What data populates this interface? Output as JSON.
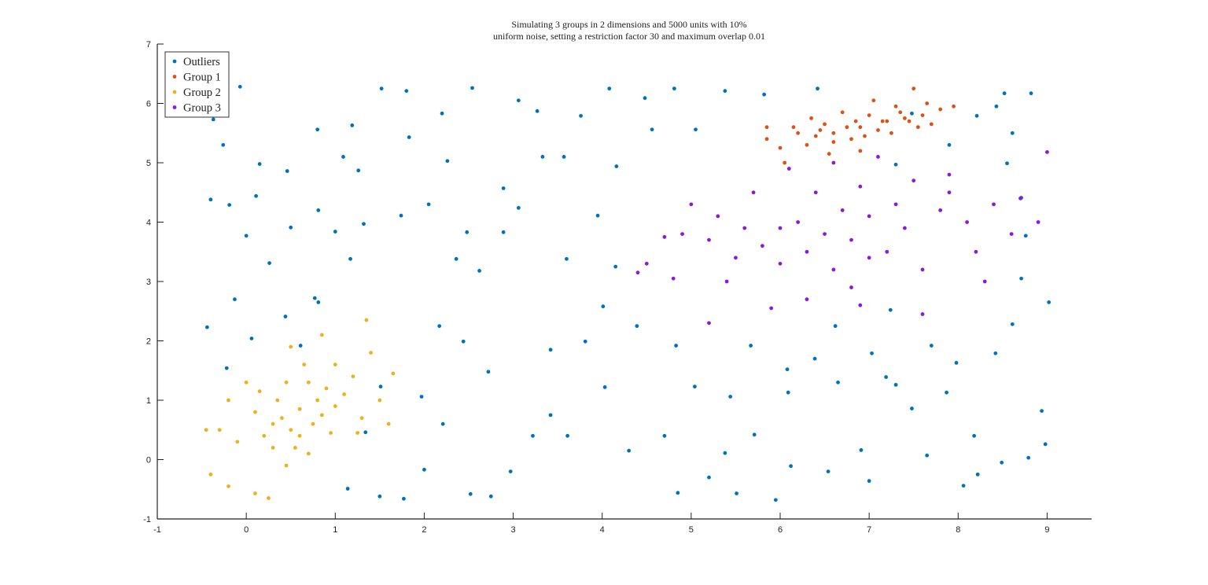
{
  "chart_data": {
    "type": "scatter",
    "title": "Simulating 3 groups in 2 dimensions and 5000 units with 10% uniform noise, setting a restriction factor 30 and maximum overlap 0.01",
    "title_lines": [
      "Simulating 3 groups in 2 dimensions and 5000 units with 10%",
      "uniform noise, setting a restriction factor 30 and maximum overlap 0.01"
    ],
    "xlabel": "",
    "ylabel": "",
    "xlim": [
      -1,
      9.5
    ],
    "ylim": [
      -1,
      7
    ],
    "x_ticks": [
      "-1",
      "0",
      "1",
      "2",
      "3",
      "4",
      "5",
      "6",
      "7",
      "8",
      "9"
    ],
    "y_ticks": [
      "-1",
      "0",
      "1",
      "2",
      "3",
      "4",
      "5",
      "6",
      "7"
    ],
    "grid": false,
    "legend_position": "top-left",
    "series": [
      {
        "name": "Outliers",
        "color": "#0072BD",
        "points": [
          [
            -0.07,
            6.28
          ],
          [
            -0.37,
            5.73
          ],
          [
            -0.26,
            5.3
          ],
          [
            0.15,
            4.98
          ],
          [
            -0.4,
            4.38
          ],
          [
            -0.19,
            4.29
          ],
          [
            0,
            3.77
          ],
          [
            0.26,
            3.31
          ],
          [
            -0.13,
            2.7
          ],
          [
            -0.44,
            2.23
          ],
          [
            0.06,
            2.04
          ],
          [
            -0.22,
            1.54
          ],
          [
            0.44,
            2.41
          ],
          [
            0.81,
            2.65
          ],
          [
            1,
            3.84
          ],
          [
            0.81,
            4.2
          ],
          [
            0.46,
            4.86
          ],
          [
            0.8,
            5.56
          ],
          [
            1.19,
            5.63
          ],
          [
            1.52,
            6.25
          ],
          [
            1.8,
            6.21
          ],
          [
            2.2,
            5.83
          ],
          [
            2.54,
            6.26
          ],
          [
            3.06,
            6.05
          ],
          [
            3.27,
            5.87
          ],
          [
            3.76,
            5.79
          ],
          [
            4.08,
            6.25
          ],
          [
            4.48,
            6.09
          ],
          [
            4.81,
            6.25
          ],
          [
            5.38,
            6.21
          ],
          [
            5.82,
            6.15
          ],
          [
            6.42,
            6.25
          ],
          [
            8.52,
            6.17
          ],
          [
            8.82,
            6.17
          ],
          [
            8.43,
            5.95
          ],
          [
            8.21,
            5.79
          ],
          [
            8.61,
            5.5
          ],
          [
            8.55,
            4.99
          ],
          [
            8.71,
            4.41
          ],
          [
            8.76,
            3.77
          ],
          [
            8.71,
            3.05
          ],
          [
            9.02,
            2.65
          ],
          [
            8.61,
            2.28
          ],
          [
            8.42,
            1.79
          ],
          [
            8.94,
            0.82
          ],
          [
            8.98,
            0.26
          ],
          [
            8.79,
            0.03
          ],
          [
            8.49,
            -0.05
          ],
          [
            8.22,
            -0.25
          ],
          [
            8.06,
            -0.44
          ],
          [
            7.65,
            0.07
          ],
          [
            7.48,
            0.86
          ],
          [
            7.19,
            1.39
          ],
          [
            6.65,
            1.3
          ],
          [
            6.39,
            1.7
          ],
          [
            6.09,
            1.13
          ],
          [
            5.95,
            -0.68
          ],
          [
            6.12,
            -0.11
          ],
          [
            5.71,
            0.42
          ],
          [
            5.38,
            0.11
          ],
          [
            5.51,
            -0.57
          ],
          [
            5.2,
            -0.3
          ],
          [
            4.85,
            -0.56
          ],
          [
            4.7,
            0.4
          ],
          [
            4.3,
            0.15
          ],
          [
            4.03,
            1.22
          ],
          [
            3.81,
            1.99
          ],
          [
            3.61,
            0.4
          ],
          [
            3.42,
            0.75
          ],
          [
            3.22,
            0.4
          ],
          [
            2.97,
            -0.2
          ],
          [
            2.75,
            -0.62
          ],
          [
            2.52,
            -0.58
          ],
          [
            2.21,
            0.6
          ],
          [
            2.0,
            -0.17
          ],
          [
            1.77,
            -0.66
          ],
          [
            1.5,
            -0.62
          ],
          [
            1.14,
            -0.49
          ],
          [
            1.34,
            0.46
          ],
          [
            1.51,
            1.23
          ],
          [
            1.97,
            1.06
          ],
          [
            2.17,
            2.25
          ],
          [
            2.44,
            1.99
          ],
          [
            2.72,
            1.48
          ],
          [
            2.62,
            3.18
          ],
          [
            2.48,
            3.83
          ],
          [
            2.89,
            3.83
          ],
          [
            3.06,
            4.24
          ],
          [
            3.33,
            5.1
          ],
          [
            3.57,
            5.1
          ],
          [
            3.95,
            4.11
          ],
          [
            4.15,
            3.25
          ],
          [
            4.01,
            2.58
          ],
          [
            4.39,
            2.25
          ],
          [
            4.83,
            1.92
          ],
          [
            5.04,
            1.23
          ],
          [
            5.44,
            1.06
          ],
          [
            5.67,
            1.92
          ],
          [
            6.08,
            1.52
          ],
          [
            6.62,
            2.25
          ],
          [
            7.03,
            1.79
          ],
          [
            7.24,
            2.52
          ],
          [
            7.7,
            1.92
          ],
          [
            7.98,
            1.63
          ],
          [
            7.3,
            1.26
          ],
          [
            6.91,
            0.16
          ],
          [
            6.54,
            -0.2
          ],
          [
            7.0,
            -0.36
          ],
          [
            3.42,
            1.85
          ],
          [
            3.6,
            3.38
          ],
          [
            2.36,
            3.38
          ],
          [
            2.05,
            4.3
          ],
          [
            1.74,
            4.11
          ],
          [
            1.32,
            3.97
          ],
          [
            1.17,
            3.38
          ],
          [
            1.09,
            5.1
          ],
          [
            0.77,
            2.72
          ],
          [
            0.5,
            3.91
          ],
          [
            0.11,
            4.44
          ],
          [
            0.61,
            1.92
          ],
          [
            7.48,
            5.83
          ],
          [
            7.9,
            5.3
          ],
          [
            7.3,
            4.97
          ],
          [
            5.05,
            5.56
          ],
          [
            4.56,
            5.56
          ],
          [
            4.16,
            4.94
          ],
          [
            2.89,
            4.57
          ],
          [
            2.26,
            5.03
          ],
          [
            1.83,
            5.43
          ],
          [
            1.26,
            4.87
          ],
          [
            8.18,
            0.4
          ],
          [
            7.87,
            1.13
          ]
        ]
      },
      {
        "name": "Group 1",
        "color": "#D95319",
        "points": [
          [
            6.9,
            5.6
          ],
          [
            6.6,
            5.5
          ],
          [
            7.2,
            5.7
          ],
          [
            7.4,
            5.75
          ],
          [
            6.4,
            5.45
          ],
          [
            6.2,
            5.5
          ],
          [
            5.85,
            5.4
          ],
          [
            5.85,
            5.6
          ],
          [
            7.6,
            5.8
          ],
          [
            7.8,
            5.9
          ],
          [
            7.0,
            5.8
          ],
          [
            6.8,
            5.4
          ],
          [
            7.1,
            5.55
          ],
          [
            6.5,
            5.65
          ],
          [
            6.3,
            5.3
          ],
          [
            7.3,
            5.95
          ],
          [
            7.5,
            6.25
          ],
          [
            6.7,
            5.85
          ],
          [
            6.0,
            5.25
          ],
          [
            6.6,
            5.35
          ],
          [
            7.7,
            5.65
          ],
          [
            7.05,
            6.05
          ],
          [
            6.85,
            5.7
          ],
          [
            7.25,
            5.5
          ],
          [
            6.45,
            5.55
          ],
          [
            7.55,
            5.6
          ],
          [
            6.15,
            5.6
          ],
          [
            6.95,
            5.45
          ],
          [
            7.35,
            5.85
          ],
          [
            6.75,
            5.6
          ],
          [
            7.15,
            5.7
          ],
          [
            7.95,
            5.95
          ],
          [
            6.55,
            5.15
          ],
          [
            6.05,
            5.0
          ],
          [
            7.45,
            5.7
          ],
          [
            6.9,
            5.2
          ],
          [
            6.35,
            5.75
          ],
          [
            7.65,
            6.0
          ]
        ]
      },
      {
        "name": "Group 2",
        "color": "#EDB120",
        "points": [
          [
            0.6,
            0.85
          ],
          [
            0.4,
            0.7
          ],
          [
            0.8,
            1.0
          ],
          [
            0.5,
            0.5
          ],
          [
            0.9,
            1.2
          ],
          [
            0.3,
            0.6
          ],
          [
            0.7,
            1.3
          ],
          [
            1.0,
            0.9
          ],
          [
            0.2,
            0.4
          ],
          [
            1.1,
            1.1
          ],
          [
            0.55,
            0.2
          ],
          [
            0.35,
            1.0
          ],
          [
            0.75,
            0.6
          ],
          [
            0.65,
            1.6
          ],
          [
            1.2,
            1.4
          ],
          [
            0.1,
            0.8
          ],
          [
            -0.1,
            0.3
          ],
          [
            -0.3,
            0.5
          ],
          [
            -0.45,
            0.5
          ],
          [
            -0.4,
            -0.25
          ],
          [
            -0.2,
            -0.45
          ],
          [
            0.1,
            -0.57
          ],
          [
            0.25,
            -0.65
          ],
          [
            0.45,
            -0.1
          ],
          [
            1.3,
            0.7
          ],
          [
            1.4,
            1.8
          ],
          [
            1.35,
            2.35
          ],
          [
            1.6,
            0.6
          ],
          [
            1.65,
            1.45
          ],
          [
            0.85,
            2.1
          ],
          [
            0.5,
            1.9
          ],
          [
            0.0,
            1.3
          ],
          [
            -0.2,
            1.0
          ],
          [
            0.95,
            0.45
          ],
          [
            0.7,
            0.1
          ],
          [
            1.25,
            0.45
          ],
          [
            0.45,
            1.3
          ],
          [
            0.85,
            0.75
          ],
          [
            0.15,
            1.15
          ],
          [
            1.0,
            1.6
          ],
          [
            0.6,
            0.4
          ],
          [
            0.3,
            0.2
          ],
          [
            1.5,
            1.0
          ]
        ]
      },
      {
        "name": "Group 3",
        "color": "#8A1AD6",
        "points": [
          [
            6.5,
            3.8
          ],
          [
            6.2,
            4.0
          ],
          [
            6.8,
            3.7
          ],
          [
            7.0,
            4.1
          ],
          [
            5.8,
            3.6
          ],
          [
            5.5,
            3.4
          ],
          [
            7.4,
            3.9
          ],
          [
            7.8,
            4.2
          ],
          [
            6.0,
            3.3
          ],
          [
            6.6,
            3.2
          ],
          [
            7.2,
            3.5
          ],
          [
            6.4,
            4.5
          ],
          [
            6.9,
            4.6
          ],
          [
            5.2,
            3.7
          ],
          [
            4.9,
            3.8
          ],
          [
            4.7,
            3.75
          ],
          [
            4.5,
            3.3
          ],
          [
            4.8,
            3.05
          ],
          [
            5.3,
            4.1
          ],
          [
            5.7,
            4.5
          ],
          [
            6.1,
            4.9
          ],
          [
            7.5,
            4.7
          ],
          [
            7.9,
            4.5
          ],
          [
            8.1,
            4.0
          ],
          [
            8.4,
            4.3
          ],
          [
            8.7,
            4.4
          ],
          [
            8.6,
            3.8
          ],
          [
            8.9,
            4.0
          ],
          [
            9.0,
            5.18
          ],
          [
            8.3,
            3.0
          ],
          [
            7.6,
            3.2
          ],
          [
            6.8,
            2.9
          ],
          [
            6.3,
            2.7
          ],
          [
            5.9,
            2.55
          ],
          [
            5.2,
            2.3
          ],
          [
            4.4,
            3.15
          ],
          [
            5.0,
            4.3
          ],
          [
            7.1,
            5.1
          ],
          [
            6.6,
            5.0
          ],
          [
            7.9,
            4.8
          ],
          [
            6.0,
            3.9
          ],
          [
            6.7,
            4.2
          ],
          [
            7.3,
            4.3
          ],
          [
            5.6,
            3.9
          ],
          [
            6.3,
            3.5
          ],
          [
            7.0,
            3.4
          ],
          [
            5.4,
            3.0
          ],
          [
            8.2,
            3.5
          ],
          [
            6.9,
            2.6
          ],
          [
            7.6,
            2.45
          ]
        ]
      }
    ]
  }
}
